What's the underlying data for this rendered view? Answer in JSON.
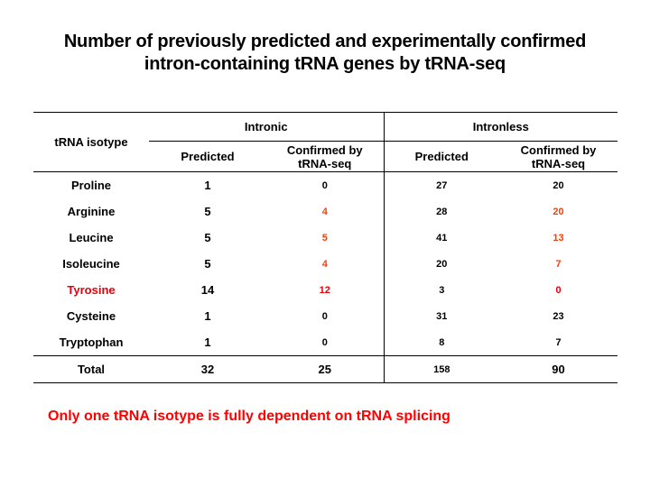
{
  "title": {
    "line1": "Number of previously predicted and experimentally confirmed",
    "line2": "intron-containing tRNA genes by tRNA-seq"
  },
  "colors": {
    "text": "#000000",
    "highlight_red": "#e5000c",
    "highlight_orange": "#ff3d00",
    "note_red": "#ff0000"
  },
  "table": {
    "row_header": "tRNA isotype",
    "groups": [
      "Intronic",
      "Intronless"
    ],
    "subheaders": [
      "Predicted",
      "Confirmed by tRNA-seq",
      "Predicted",
      "Confirmed by tRNA-seq"
    ],
    "rows": [
      {
        "isotype": "Proline",
        "intronic_predicted": "1",
        "intronic_confirmed": "0",
        "intronless_predicted": "27",
        "intronless_confirmed": "20"
      },
      {
        "isotype": "Arginine",
        "intronic_predicted": "5",
        "intronic_confirmed": "4",
        "intronless_predicted": "28",
        "intronless_confirmed": "20"
      },
      {
        "isotype": "Leucine",
        "intronic_predicted": "5",
        "intronic_confirmed": "5",
        "intronless_predicted": "41",
        "intronless_confirmed": "13"
      },
      {
        "isotype": "Isoleucine",
        "intronic_predicted": "5",
        "intronic_confirmed": "4",
        "intronless_predicted": "20",
        "intronless_confirmed": "7"
      },
      {
        "isotype": "Tyrosine",
        "intronic_predicted": "14",
        "intronic_confirmed": "12",
        "intronless_predicted": "3",
        "intronless_confirmed": "0"
      },
      {
        "isotype": "Cysteine",
        "intronic_predicted": "1",
        "intronic_confirmed": "0",
        "intronless_predicted": "31",
        "intronless_confirmed": "23"
      },
      {
        "isotype": "Tryptophan",
        "intronic_predicted": "1",
        "intronic_confirmed": "0",
        "intronless_predicted": "8",
        "intronless_confirmed": "7"
      }
    ],
    "total": {
      "label": "Total",
      "intronic_predicted": "32",
      "intronic_confirmed": "25",
      "intronless_predicted": "158",
      "intronless_confirmed": "90"
    }
  },
  "note": "Only one tRNA isotype is fully dependent on tRNA splicing"
}
